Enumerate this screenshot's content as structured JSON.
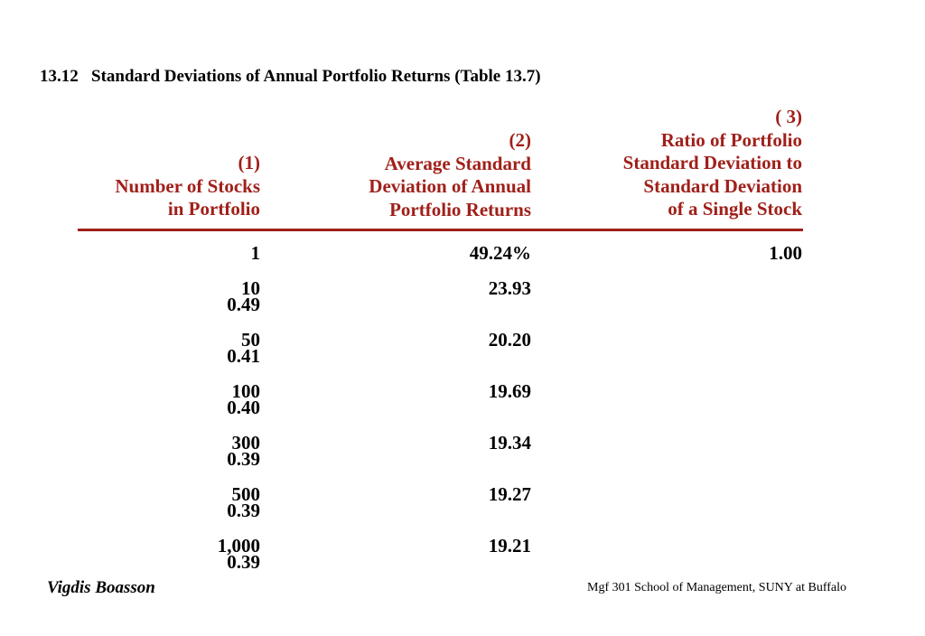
{
  "title": "13.12   Standard Deviations of Annual Portfolio Returns (Table 13.7)",
  "colors": {
    "header": "#a0201a",
    "text": "#000000",
    "background": "#ffffff"
  },
  "table": {
    "headers": [
      [
        "(1)",
        "Number of Stocks",
        "in Portfolio"
      ],
      [
        "(2)",
        "Average Standard",
        "Deviation of Annual",
        "Portfolio Returns"
      ],
      [
        "( 3)",
        "Ratio of Portfolio",
        "Standard Deviation to",
        "Standard Deviation",
        "of a Single Stock"
      ]
    ],
    "first_row": {
      "stocks": "1",
      "avg_sd": "49.24%",
      "ratio": "1.00"
    },
    "rows": [
      {
        "stocks": "10",
        "avg_sd": "23.93",
        "ratio": "0.49"
      },
      {
        "stocks": "50",
        "avg_sd": "20.20",
        "ratio": "0.41"
      },
      {
        "stocks": "100",
        "avg_sd": "19.69",
        "ratio": "0.40"
      },
      {
        "stocks": "300",
        "avg_sd": "19.34",
        "ratio": "0.39"
      },
      {
        "stocks": "500",
        "avg_sd": "19.27",
        "ratio": "0.39"
      },
      {
        "stocks": "1,000",
        "avg_sd": "19.21",
        "ratio": "0.39"
      }
    ]
  },
  "footer": {
    "author": "Vigdis Boasson",
    "course": "Mgf 301 School of Management, SUNY at Buffalo"
  }
}
